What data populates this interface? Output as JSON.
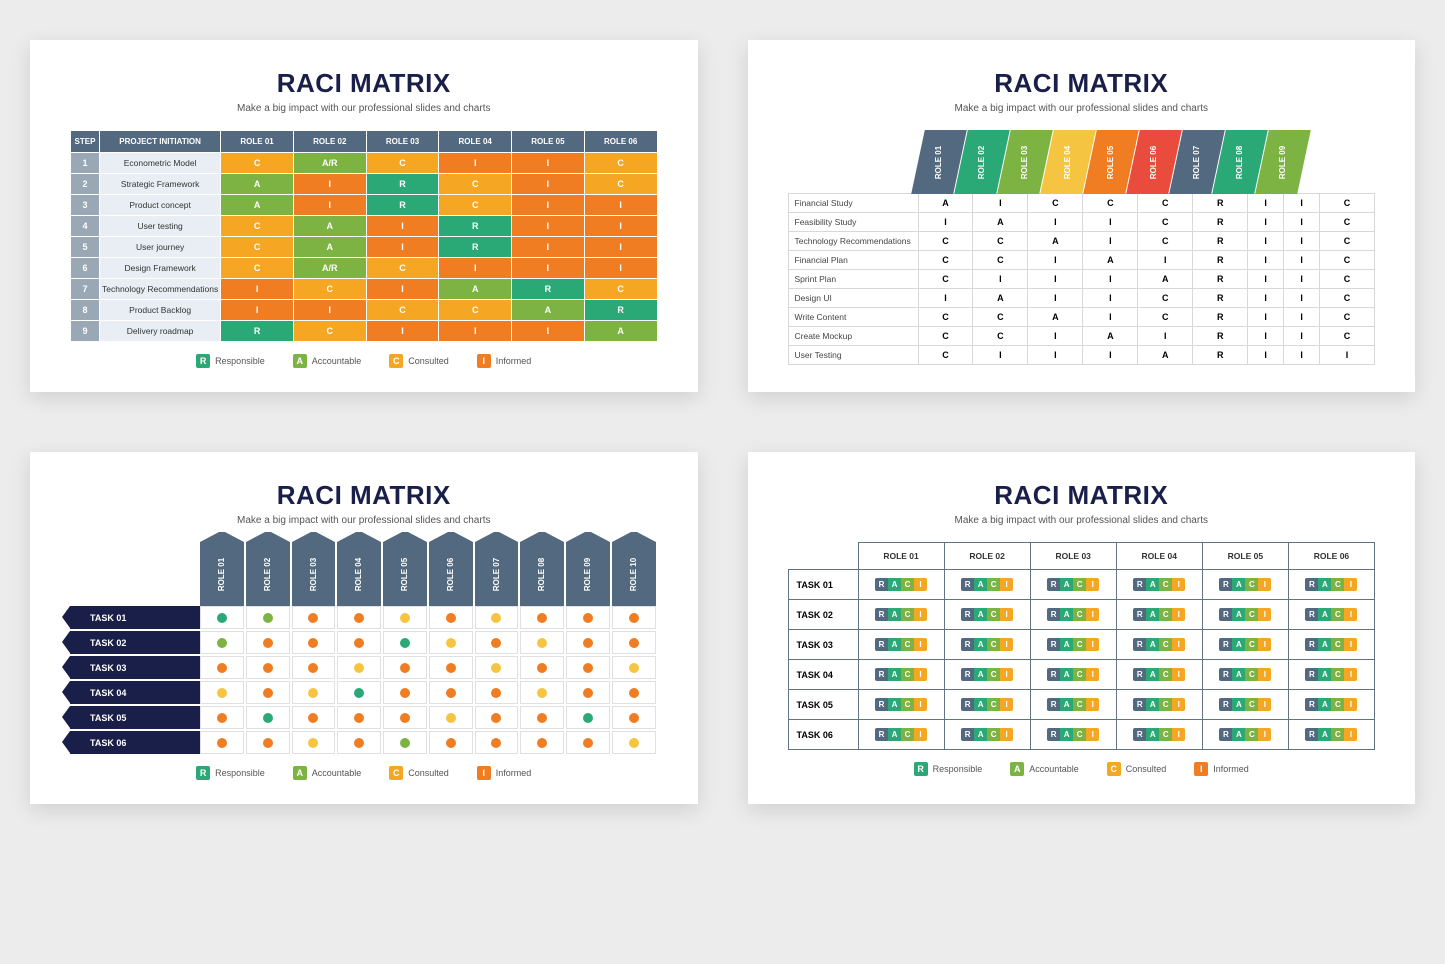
{
  "colors": {
    "R": "#2aa876",
    "A": "#7cb342",
    "C": "#f5a623",
    "I": "#f07d22",
    "header": "#53697f",
    "dark": "#1a1f4a",
    "red": "#e94b3c",
    "teal": "#2aa876",
    "green": "#7cb342",
    "yellow": "#f5c542",
    "orange": "#f07d22",
    "slate": "#53697f",
    "grey": "#9aa7b4"
  },
  "title": "RACI MATRIX",
  "subtitle": "Make a big impact with our professional slides and charts",
  "legend": [
    [
      "R",
      "Responsible",
      "#2aa876"
    ],
    [
      "A",
      "Accountable",
      "#7cb342"
    ],
    [
      "C",
      "Consulted",
      "#f5a623"
    ],
    [
      "I",
      "Informed",
      "#f07d22"
    ]
  ],
  "card1": {
    "headers": [
      "STEP",
      "PROJECT INITIATION",
      "ROLE 01",
      "ROLE 02",
      "ROLE 03",
      "ROLE 04",
      "ROLE 05",
      "ROLE 06"
    ],
    "rows": [
      [
        "1",
        "Econometric Model",
        "C",
        "A/R",
        "C",
        "I",
        "I",
        "C"
      ],
      [
        "2",
        "Strategic Framework",
        "A",
        "I",
        "R",
        "C",
        "I",
        "C"
      ],
      [
        "3",
        "Product concept",
        "A",
        "I",
        "R",
        "C",
        "I",
        "I"
      ],
      [
        "4",
        "User testing",
        "C",
        "A",
        "I",
        "R",
        "I",
        "I"
      ],
      [
        "5",
        "User journey",
        "C",
        "A",
        "I",
        "R",
        "I",
        "I"
      ],
      [
        "6",
        "Design Framework",
        "C",
        "A/R",
        "C",
        "I",
        "I",
        "I"
      ],
      [
        "7",
        "Technology Recommendations",
        "I",
        "C",
        "I",
        "A",
        "R",
        "C"
      ],
      [
        "8",
        "Product Backlog",
        "I",
        "I",
        "C",
        "C",
        "A",
        "R"
      ],
      [
        "9",
        "Delivery roadmap",
        "R",
        "C",
        "I",
        "I",
        "I",
        "A"
      ]
    ]
  },
  "card2": {
    "roles": [
      [
        "ROLE 01",
        "#53697f"
      ],
      [
        "ROLE 02",
        "#2aa876"
      ],
      [
        "ROLE 03",
        "#7cb342"
      ],
      [
        "ROLE 04",
        "#f5c542"
      ],
      [
        "ROLE 05",
        "#f07d22"
      ],
      [
        "ROLE 06",
        "#e94b3c"
      ],
      [
        "ROLE 07",
        "#53697f"
      ],
      [
        "ROLE 08",
        "#2aa876"
      ],
      [
        "ROLE 09",
        "#7cb342"
      ]
    ],
    "rows": [
      [
        "Financial Study",
        "A",
        "I",
        "C",
        "C",
        "C",
        "R",
        "I",
        "I",
        "C"
      ],
      [
        "Feasibility Study",
        "I",
        "A",
        "I",
        "I",
        "C",
        "R",
        "I",
        "I",
        "C"
      ],
      [
        "Technology Recommendations",
        "C",
        "C",
        "A",
        "I",
        "C",
        "R",
        "I",
        "I",
        "C"
      ],
      [
        "Financial Plan",
        "C",
        "C",
        "I",
        "A",
        "I",
        "R",
        "I",
        "I",
        "C"
      ],
      [
        "Sprint Plan",
        "C",
        "I",
        "I",
        "I",
        "A",
        "R",
        "I",
        "I",
        "C"
      ],
      [
        "Design UI",
        "I",
        "A",
        "I",
        "I",
        "C",
        "R",
        "I",
        "I",
        "C"
      ],
      [
        "Write Content",
        "C",
        "C",
        "A",
        "I",
        "C",
        "R",
        "I",
        "I",
        "C"
      ],
      [
        "Create Mockup",
        "C",
        "C",
        "I",
        "A",
        "I",
        "R",
        "I",
        "I",
        "C"
      ],
      [
        "User Testing",
        "C",
        "I",
        "I",
        "I",
        "A",
        "R",
        "I",
        "I",
        "I"
      ]
    ]
  },
  "card3": {
    "roles": [
      "ROLE 01",
      "ROLE 02",
      "ROLE 03",
      "ROLE 04",
      "ROLE 05",
      "ROLE 06",
      "ROLE 07",
      "ROLE 08",
      "ROLE 09",
      "ROLE 10"
    ],
    "rows": [
      [
        "TASK 01",
        [
          "#2aa876",
          "#7cb342",
          "#f07d22",
          "#f07d22",
          "#f5c542",
          "#f07d22",
          "#f5c542",
          "#f07d22",
          "#f07d22",
          "#f07d22"
        ]
      ],
      [
        "TASK 02",
        [
          "#7cb342",
          "#f07d22",
          "#f07d22",
          "#f07d22",
          "#2aa876",
          "#f5c542",
          "#f07d22",
          "#f5c542",
          "#f07d22",
          "#f07d22"
        ]
      ],
      [
        "TASK 03",
        [
          "#f07d22",
          "#f07d22",
          "#f07d22",
          "#f5c542",
          "#f07d22",
          "#f07d22",
          "#f5c542",
          "#f07d22",
          "#f07d22",
          "#f5c542"
        ]
      ],
      [
        "TASK 04",
        [
          "#f5c542",
          "#f07d22",
          "#f5c542",
          "#2aa876",
          "#f07d22",
          "#f07d22",
          "#f07d22",
          "#f5c542",
          "#f07d22",
          "#f07d22"
        ]
      ],
      [
        "TASK 05",
        [
          "#f07d22",
          "#2aa876",
          "#f07d22",
          "#f07d22",
          "#f07d22",
          "#f5c542",
          "#f07d22",
          "#f07d22",
          "#2aa876",
          "#f07d22"
        ]
      ],
      [
        "TASK 06",
        [
          "#f07d22",
          "#f07d22",
          "#f5c542",
          "#f07d22",
          "#7cb342",
          "#f07d22",
          "#f07d22",
          "#f07d22",
          "#f07d22",
          "#f5c542"
        ]
      ]
    ]
  },
  "card4": {
    "roles": [
      "ROLE 01",
      "ROLE 02",
      "ROLE 03",
      "ROLE 04",
      "ROLE 05",
      "ROLE 06"
    ],
    "tasks": [
      "TASK 01",
      "TASK 02",
      "TASK 03",
      "TASK 04",
      "TASK 05",
      "TASK 06"
    ]
  }
}
